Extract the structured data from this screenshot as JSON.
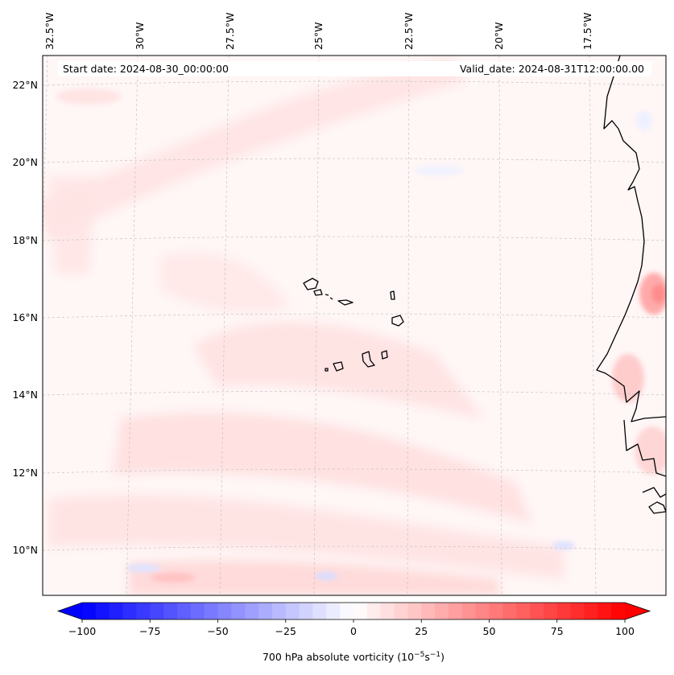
{
  "map": {
    "start_date_label": "Start date: 2024-08-30_00:00:00",
    "valid_date_label": "Valid_date: 2024-08-31T12:00:00.00",
    "lon_labels": [
      "32.5°W",
      "30°W",
      "27.5°W",
      "25°W",
      "22.5°W",
      "20°W",
      "17.5°W"
    ],
    "lat_labels": [
      "22°N",
      "20°N",
      "18°N",
      "16°N",
      "14°N",
      "12°N",
      "10°N"
    ],
    "field": "700 hPa absolute vorticity",
    "gridlines": true
  },
  "colorbar": {
    "tick_labels": [
      "−100",
      "−75",
      "−50",
      "−25",
      "0",
      "25",
      "50",
      "75",
      "100"
    ],
    "label_text": "700 hPa absolute vorticity (10",
    "label_exp1": "−5",
    "label_mid": "s",
    "label_exp2": "−1",
    "label_end": ")",
    "min": -100,
    "max": 100,
    "step": 5,
    "extend": "both",
    "colors": {
      "negative": "#0000ff",
      "zero": "#ffffff",
      "positive": "#ff0000"
    }
  }
}
